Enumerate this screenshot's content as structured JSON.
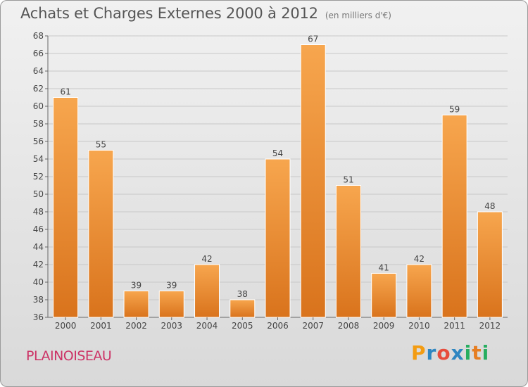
{
  "header": {
    "title": "Achats et Charges Externes 2000 à 2012",
    "unit": "(en milliers d'€)"
  },
  "commune": "PLAINOISEAU",
  "brand": {
    "name": "Proxiti",
    "letters": [
      "P",
      "r",
      "o",
      "x",
      "i",
      "t",
      "i"
    ],
    "letter_colors": [
      "#f39c12",
      "#2e86c1",
      "#e74c3c",
      "#2e86c1",
      "#27ae60",
      "#e67e22",
      "#27ae60"
    ]
  },
  "colors": {
    "bar_top": "#f7a64e",
    "bar_bottom": "#d9731c",
    "grid": "#c8c8c8"
  },
  "chart_data": {
    "type": "bar",
    "title": "Achats et Charges Externes 2000 à 2012",
    "subtitle": "(en milliers d'€)",
    "xlabel": "",
    "ylabel": "",
    "categories": [
      "2000",
      "2001",
      "2002",
      "2003",
      "2004",
      "2005",
      "2006",
      "2007",
      "2008",
      "2009",
      "2010",
      "2011",
      "2012"
    ],
    "values": [
      61,
      55,
      39,
      39,
      42,
      38,
      54,
      67,
      51,
      41,
      42,
      59,
      48
    ],
    "ylim": [
      36,
      68
    ],
    "yticks": [
      36,
      38,
      40,
      42,
      44,
      46,
      48,
      50,
      52,
      54,
      56,
      58,
      60,
      62,
      64,
      66,
      68
    ],
    "grid": true,
    "legend": "none"
  }
}
